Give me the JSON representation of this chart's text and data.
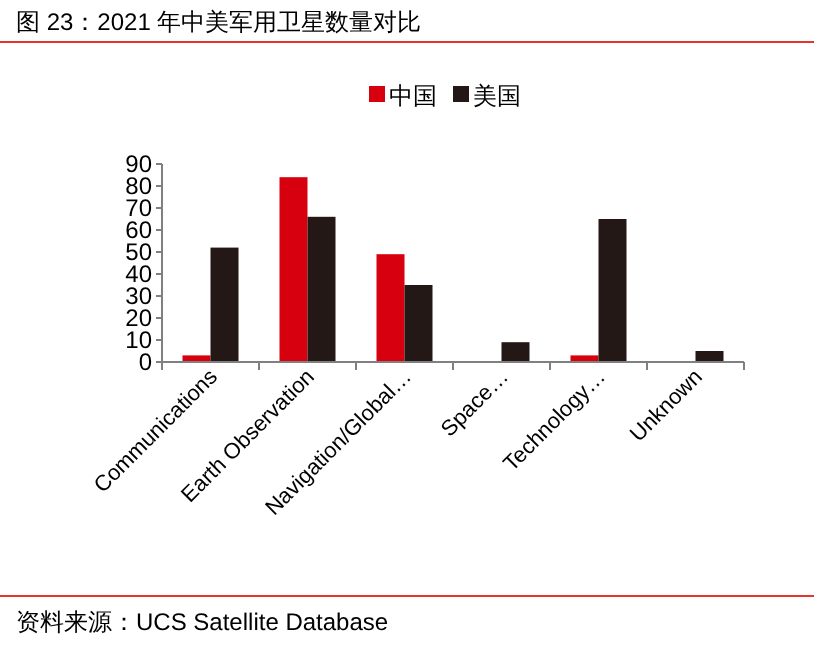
{
  "chart_data": {
    "type": "bar",
    "title": "图 23：2021 年中美军用卫星数量对比",
    "categories": [
      "Communications",
      "Earth Observation",
      "Navigation/Global…",
      "Space…",
      "Technology…",
      "Unknown"
    ],
    "series": [
      {
        "name": "中国",
        "color": "#d7000f",
        "values": [
          3,
          84,
          49,
          0,
          3,
          0
        ]
      },
      {
        "name": "美国",
        "color": "#231815",
        "values": [
          52,
          66,
          35,
          9,
          65,
          5
        ]
      }
    ],
    "ylim": [
      0,
      90
    ],
    "yticks": [
      0,
      10,
      20,
      30,
      40,
      50,
      60,
      70,
      80,
      90
    ],
    "grid": false,
    "legend": "top",
    "annotations": [
      "资料来源：UCS Satellite Database"
    ]
  }
}
